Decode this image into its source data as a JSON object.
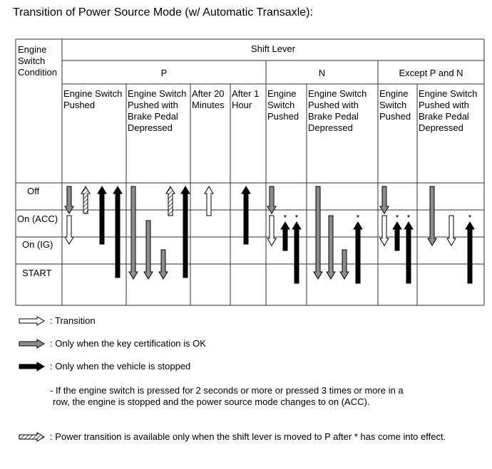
{
  "title": "Transition of Power Source Mode (w/ Automatic Transaxle):",
  "table": {
    "corner": [
      "Engine",
      "Switch",
      "Condition"
    ],
    "shift_lever": "Shift Lever",
    "groups": [
      "P",
      "N",
      "Except P and N"
    ],
    "columns": [
      [
        "Engine Switch",
        "Pushed"
      ],
      [
        "Engine Switch",
        "Pushed with",
        "Brake Pedal",
        "Depressed"
      ],
      [
        "After 20",
        "Minutes"
      ],
      [
        "After 1",
        "Hour"
      ],
      [
        "Engine",
        "Switch",
        "Pushed"
      ],
      [
        "Engine Switch",
        "Pushed with",
        "Brake Pedal",
        "Depressed"
      ],
      [
        "Engine",
        "Switch",
        "Pushed"
      ],
      [
        "Engine Switch",
        "Pushed with",
        "Brake Pedal",
        "Depressed"
      ]
    ],
    "states": [
      "Off",
      "On (ACC)",
      "On (IG)",
      "START"
    ],
    "star": "*"
  },
  "legend": {
    "transition": ": Transition",
    "key_ok": ": Only when the key certification is OK",
    "stopped": ": Only when the vehicle is stopped",
    "note_1": "- If the engine switch is pressed for 2 seconds or more or pressed 3 times or more in a",
    "note_2": "row, the engine is stopped and the power source mode changes to on (ACC).",
    "hatched": ": Power transition is available only when the shift lever is moved to P after * has come into effect."
  },
  "colors": {
    "gray": "#8c8c8c",
    "black": "#000000",
    "white": "#ffffff"
  }
}
